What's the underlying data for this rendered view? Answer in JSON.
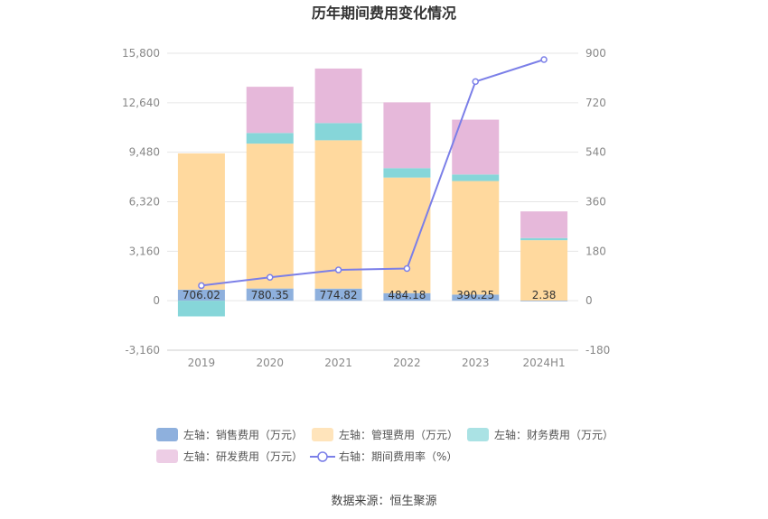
{
  "chart_data": {
    "type": "bar",
    "title": "历年期间费用变化情况",
    "categories": [
      "2019",
      "2020",
      "2021",
      "2022",
      "2023",
      "2024H1"
    ],
    "left_axis": {
      "ylim": [
        -3160,
        15800
      ],
      "ticks": [
        "15,800",
        "12,640",
        "9,480",
        "6,320",
        "3,160",
        "0",
        "-3,160"
      ],
      "tick_values": [
        15800,
        12640,
        9480,
        6320,
        3160,
        0,
        -3160
      ]
    },
    "right_axis": {
      "ylim": [
        -180,
        900
      ],
      "ticks": [
        "900",
        "720",
        "540",
        "360",
        "180",
        "0",
        "-180"
      ],
      "tick_values": [
        900,
        720,
        540,
        360,
        180,
        0,
        -180
      ]
    },
    "series": [
      {
        "name": "左轴：销售费用（万元）",
        "axis": "left",
        "kind": "bar",
        "color": "#8eb0dd",
        "values": [
          706.02,
          780.35,
          774.82,
          484.18,
          390.25,
          2.38
        ],
        "labels": [
          "706.02",
          "780.35",
          "774.82",
          "484.18",
          "390.25",
          "2.38"
        ]
      },
      {
        "name": "左轴：管理费用（万元）",
        "axis": "left",
        "kind": "bar",
        "color": "#ffd99e",
        "values": [
          8700,
          9250,
          9470,
          7380,
          7250,
          3860
        ]
      },
      {
        "name": "左轴：财务费用（万元）",
        "axis": "left",
        "kind": "bar",
        "color": "#86d6d9",
        "values": [
          -1000,
          680,
          1100,
          600,
          420,
          140
        ]
      },
      {
        "name": "左轴：研发费用（万元）",
        "axis": "left",
        "kind": "bar",
        "color": "#e6b8da",
        "values": [
          0,
          2950,
          3480,
          4200,
          3500,
          1700
        ]
      },
      {
        "name": "右轴：期间费用率（%）",
        "axis": "right",
        "kind": "line",
        "color": "#7b7fe8",
        "values": [
          55,
          85,
          112,
          117,
          797,
          877
        ]
      }
    ],
    "grid": true,
    "legend_position": "bottom"
  },
  "source_text": "数据来源：恒生聚源"
}
